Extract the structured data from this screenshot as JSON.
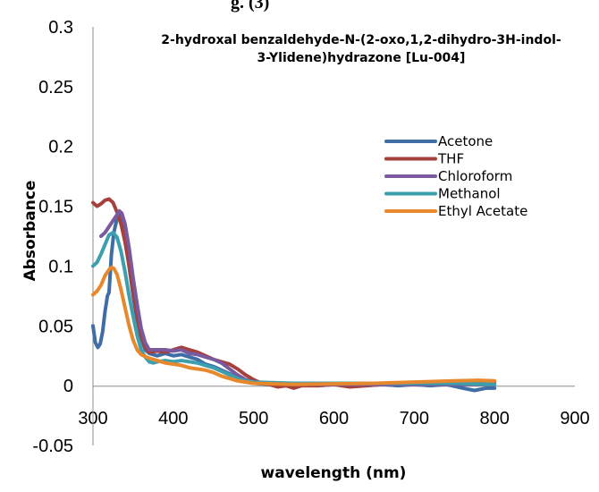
{
  "top_fragment": "g. (3)",
  "chart_data": {
    "type": "line",
    "title_lines": [
      "2-hydroxal benzaldehyde-N-(2-oxo,1,2-dihydro-3H-indol-",
      "3-Ylidene)hydrazone [Lu-004]"
    ],
    "xlabel": "wavelength (nm)",
    "ylabel": "Absorbance",
    "xlim": [
      300,
      900
    ],
    "ylim": [
      -0.05,
      0.3
    ],
    "x_ticks": [
      "300",
      "400",
      "500",
      "600",
      "700",
      "800",
      "900"
    ],
    "y_ticks": [
      "0.3",
      "0.25",
      "0.2",
      "0.15",
      "0.1",
      "0.05",
      "0",
      "-0.05"
    ],
    "grid": false,
    "legend_position": "right",
    "series": [
      {
        "name": "Acetone",
        "color": "#3f6ea6",
        "points": [
          [
            300,
            0.05
          ],
          [
            303,
            0.036
          ],
          [
            306,
            0.032
          ],
          [
            309,
            0.035
          ],
          [
            312,
            0.045
          ],
          [
            315,
            0.062
          ],
          [
            318,
            0.075
          ],
          [
            320,
            0.078
          ],
          [
            323,
            0.11
          ],
          [
            326,
            0.128
          ],
          [
            330,
            0.14
          ],
          [
            333,
            0.143
          ],
          [
            336,
            0.14
          ],
          [
            340,
            0.125
          ],
          [
            345,
            0.1
          ],
          [
            350,
            0.075
          ],
          [
            355,
            0.055
          ],
          [
            360,
            0.04
          ],
          [
            365,
            0.03
          ],
          [
            370,
            0.027
          ],
          [
            380,
            0.025
          ],
          [
            390,
            0.027
          ],
          [
            400,
            0.025
          ],
          [
            410,
            0.026
          ],
          [
            420,
            0.024
          ],
          [
            430,
            0.022
          ],
          [
            440,
            0.018
          ],
          [
            450,
            0.016
          ],
          [
            460,
            0.013
          ],
          [
            470,
            0.01
          ],
          [
            480,
            0.006
          ],
          [
            490,
            0.003
          ],
          [
            500,
            0.002
          ],
          [
            520,
            0.001
          ],
          [
            540,
            0.0
          ],
          [
            560,
            0.001
          ],
          [
            580,
            0.0
          ],
          [
            600,
            0.001
          ],
          [
            620,
            0.0
          ],
          [
            640,
            0.0
          ],
          [
            660,
            0.001
          ],
          [
            680,
            0.0
          ],
          [
            700,
            0.001
          ],
          [
            720,
            0.0
          ],
          [
            740,
            0.001
          ],
          [
            760,
            -0.002
          ],
          [
            775,
            -0.004
          ],
          [
            790,
            -0.002
          ],
          [
            800,
            -0.002
          ]
        ]
      },
      {
        "name": "THF",
        "color": "#a6403d",
        "points": [
          [
            300,
            0.153
          ],
          [
            305,
            0.15
          ],
          [
            310,
            0.152
          ],
          [
            315,
            0.155
          ],
          [
            320,
            0.156
          ],
          [
            325,
            0.153
          ],
          [
            330,
            0.145
          ],
          [
            335,
            0.135
          ],
          [
            340,
            0.12
          ],
          [
            345,
            0.1
          ],
          [
            350,
            0.078
          ],
          [
            355,
            0.058
          ],
          [
            360,
            0.042
          ],
          [
            365,
            0.032
          ],
          [
            370,
            0.028
          ],
          [
            380,
            0.029
          ],
          [
            390,
            0.028
          ],
          [
            400,
            0.03
          ],
          [
            410,
            0.032
          ],
          [
            420,
            0.03
          ],
          [
            430,
            0.028
          ],
          [
            440,
            0.025
          ],
          [
            450,
            0.022
          ],
          [
            460,
            0.02
          ],
          [
            470,
            0.018
          ],
          [
            480,
            0.014
          ],
          [
            490,
            0.009
          ],
          [
            500,
            0.005
          ],
          [
            510,
            0.002
          ],
          [
            520,
            0.001
          ],
          [
            530,
            -0.001
          ],
          [
            540,
            0.0
          ],
          [
            550,
            -0.002
          ],
          [
            560,
            0.0
          ],
          [
            580,
            0.0
          ],
          [
            600,
            0.001
          ],
          [
            620,
            -0.001
          ],
          [
            640,
            0.0
          ],
          [
            660,
            0.001
          ],
          [
            700,
            0.002
          ],
          [
            740,
            0.002
          ],
          [
            780,
            0.003
          ],
          [
            800,
            0.003
          ]
        ]
      },
      {
        "name": "Chloroform",
        "color": "#7a5a9e",
        "points": [
          [
            310,
            0.125
          ],
          [
            315,
            0.128
          ],
          [
            320,
            0.133
          ],
          [
            325,
            0.138
          ],
          [
            330,
            0.143
          ],
          [
            333,
            0.146
          ],
          [
            336,
            0.144
          ],
          [
            340,
            0.135
          ],
          [
            345,
            0.115
          ],
          [
            350,
            0.09
          ],
          [
            355,
            0.068
          ],
          [
            360,
            0.048
          ],
          [
            365,
            0.036
          ],
          [
            370,
            0.03
          ],
          [
            380,
            0.03
          ],
          [
            390,
            0.03
          ],
          [
            400,
            0.029
          ],
          [
            410,
            0.03
          ],
          [
            420,
            0.027
          ],
          [
            430,
            0.026
          ],
          [
            440,
            0.024
          ],
          [
            450,
            0.022
          ],
          [
            460,
            0.019
          ],
          [
            470,
            0.014
          ],
          [
            480,
            0.009
          ],
          [
            490,
            0.005
          ],
          [
            500,
            0.003
          ],
          [
            520,
            0.002
          ],
          [
            550,
            0.001
          ],
          [
            600,
            0.001
          ],
          [
            650,
            0.001
          ],
          [
            700,
            0.001
          ],
          [
            750,
            0.001
          ],
          [
            800,
            0.001
          ]
        ]
      },
      {
        "name": "Methanol",
        "color": "#3c9fae",
        "points": [
          [
            300,
            0.1
          ],
          [
            305,
            0.103
          ],
          [
            310,
            0.11
          ],
          [
            315,
            0.118
          ],
          [
            320,
            0.126
          ],
          [
            325,
            0.128
          ],
          [
            330,
            0.124
          ],
          [
            335,
            0.112
          ],
          [
            340,
            0.095
          ],
          [
            345,
            0.075
          ],
          [
            350,
            0.058
          ],
          [
            355,
            0.042
          ],
          [
            360,
            0.03
          ],
          [
            365,
            0.024
          ],
          [
            370,
            0.02
          ],
          [
            375,
            0.019
          ],
          [
            380,
            0.02
          ],
          [
            390,
            0.021
          ],
          [
            400,
            0.02
          ],
          [
            410,
            0.021
          ],
          [
            420,
            0.02
          ],
          [
            430,
            0.019
          ],
          [
            440,
            0.017
          ],
          [
            450,
            0.015
          ],
          [
            460,
            0.012
          ],
          [
            470,
            0.009
          ],
          [
            480,
            0.006
          ],
          [
            490,
            0.004
          ],
          [
            500,
            0.003
          ],
          [
            550,
            0.002
          ],
          [
            600,
            0.002
          ],
          [
            650,
            0.002
          ],
          [
            700,
            0.002
          ],
          [
            750,
            0.002
          ],
          [
            800,
            0.001
          ]
        ]
      },
      {
        "name": "Ethyl Acetate",
        "color": "#e8882d",
        "points": [
          [
            300,
            0.076
          ],
          [
            305,
            0.079
          ],
          [
            310,
            0.084
          ],
          [
            315,
            0.092
          ],
          [
            320,
            0.097
          ],
          [
            323,
            0.099
          ],
          [
            326,
            0.098
          ],
          [
            330,
            0.093
          ],
          [
            335,
            0.08
          ],
          [
            340,
            0.065
          ],
          [
            345,
            0.05
          ],
          [
            350,
            0.038
          ],
          [
            355,
            0.03
          ],
          [
            360,
            0.026
          ],
          [
            370,
            0.023
          ],
          [
            380,
            0.021
          ],
          [
            390,
            0.019
          ],
          [
            400,
            0.018
          ],
          [
            410,
            0.017
          ],
          [
            420,
            0.015
          ],
          [
            430,
            0.014
          ],
          [
            440,
            0.013
          ],
          [
            450,
            0.011
          ],
          [
            460,
            0.008
          ],
          [
            470,
            0.006
          ],
          [
            480,
            0.004
          ],
          [
            490,
            0.003
          ],
          [
            500,
            0.002
          ],
          [
            550,
            0.001
          ],
          [
            600,
            0.0015
          ],
          [
            650,
            0.002
          ],
          [
            700,
            0.003
          ],
          [
            750,
            0.004
          ],
          [
            780,
            0.0045
          ],
          [
            800,
            0.004
          ]
        ]
      }
    ]
  }
}
